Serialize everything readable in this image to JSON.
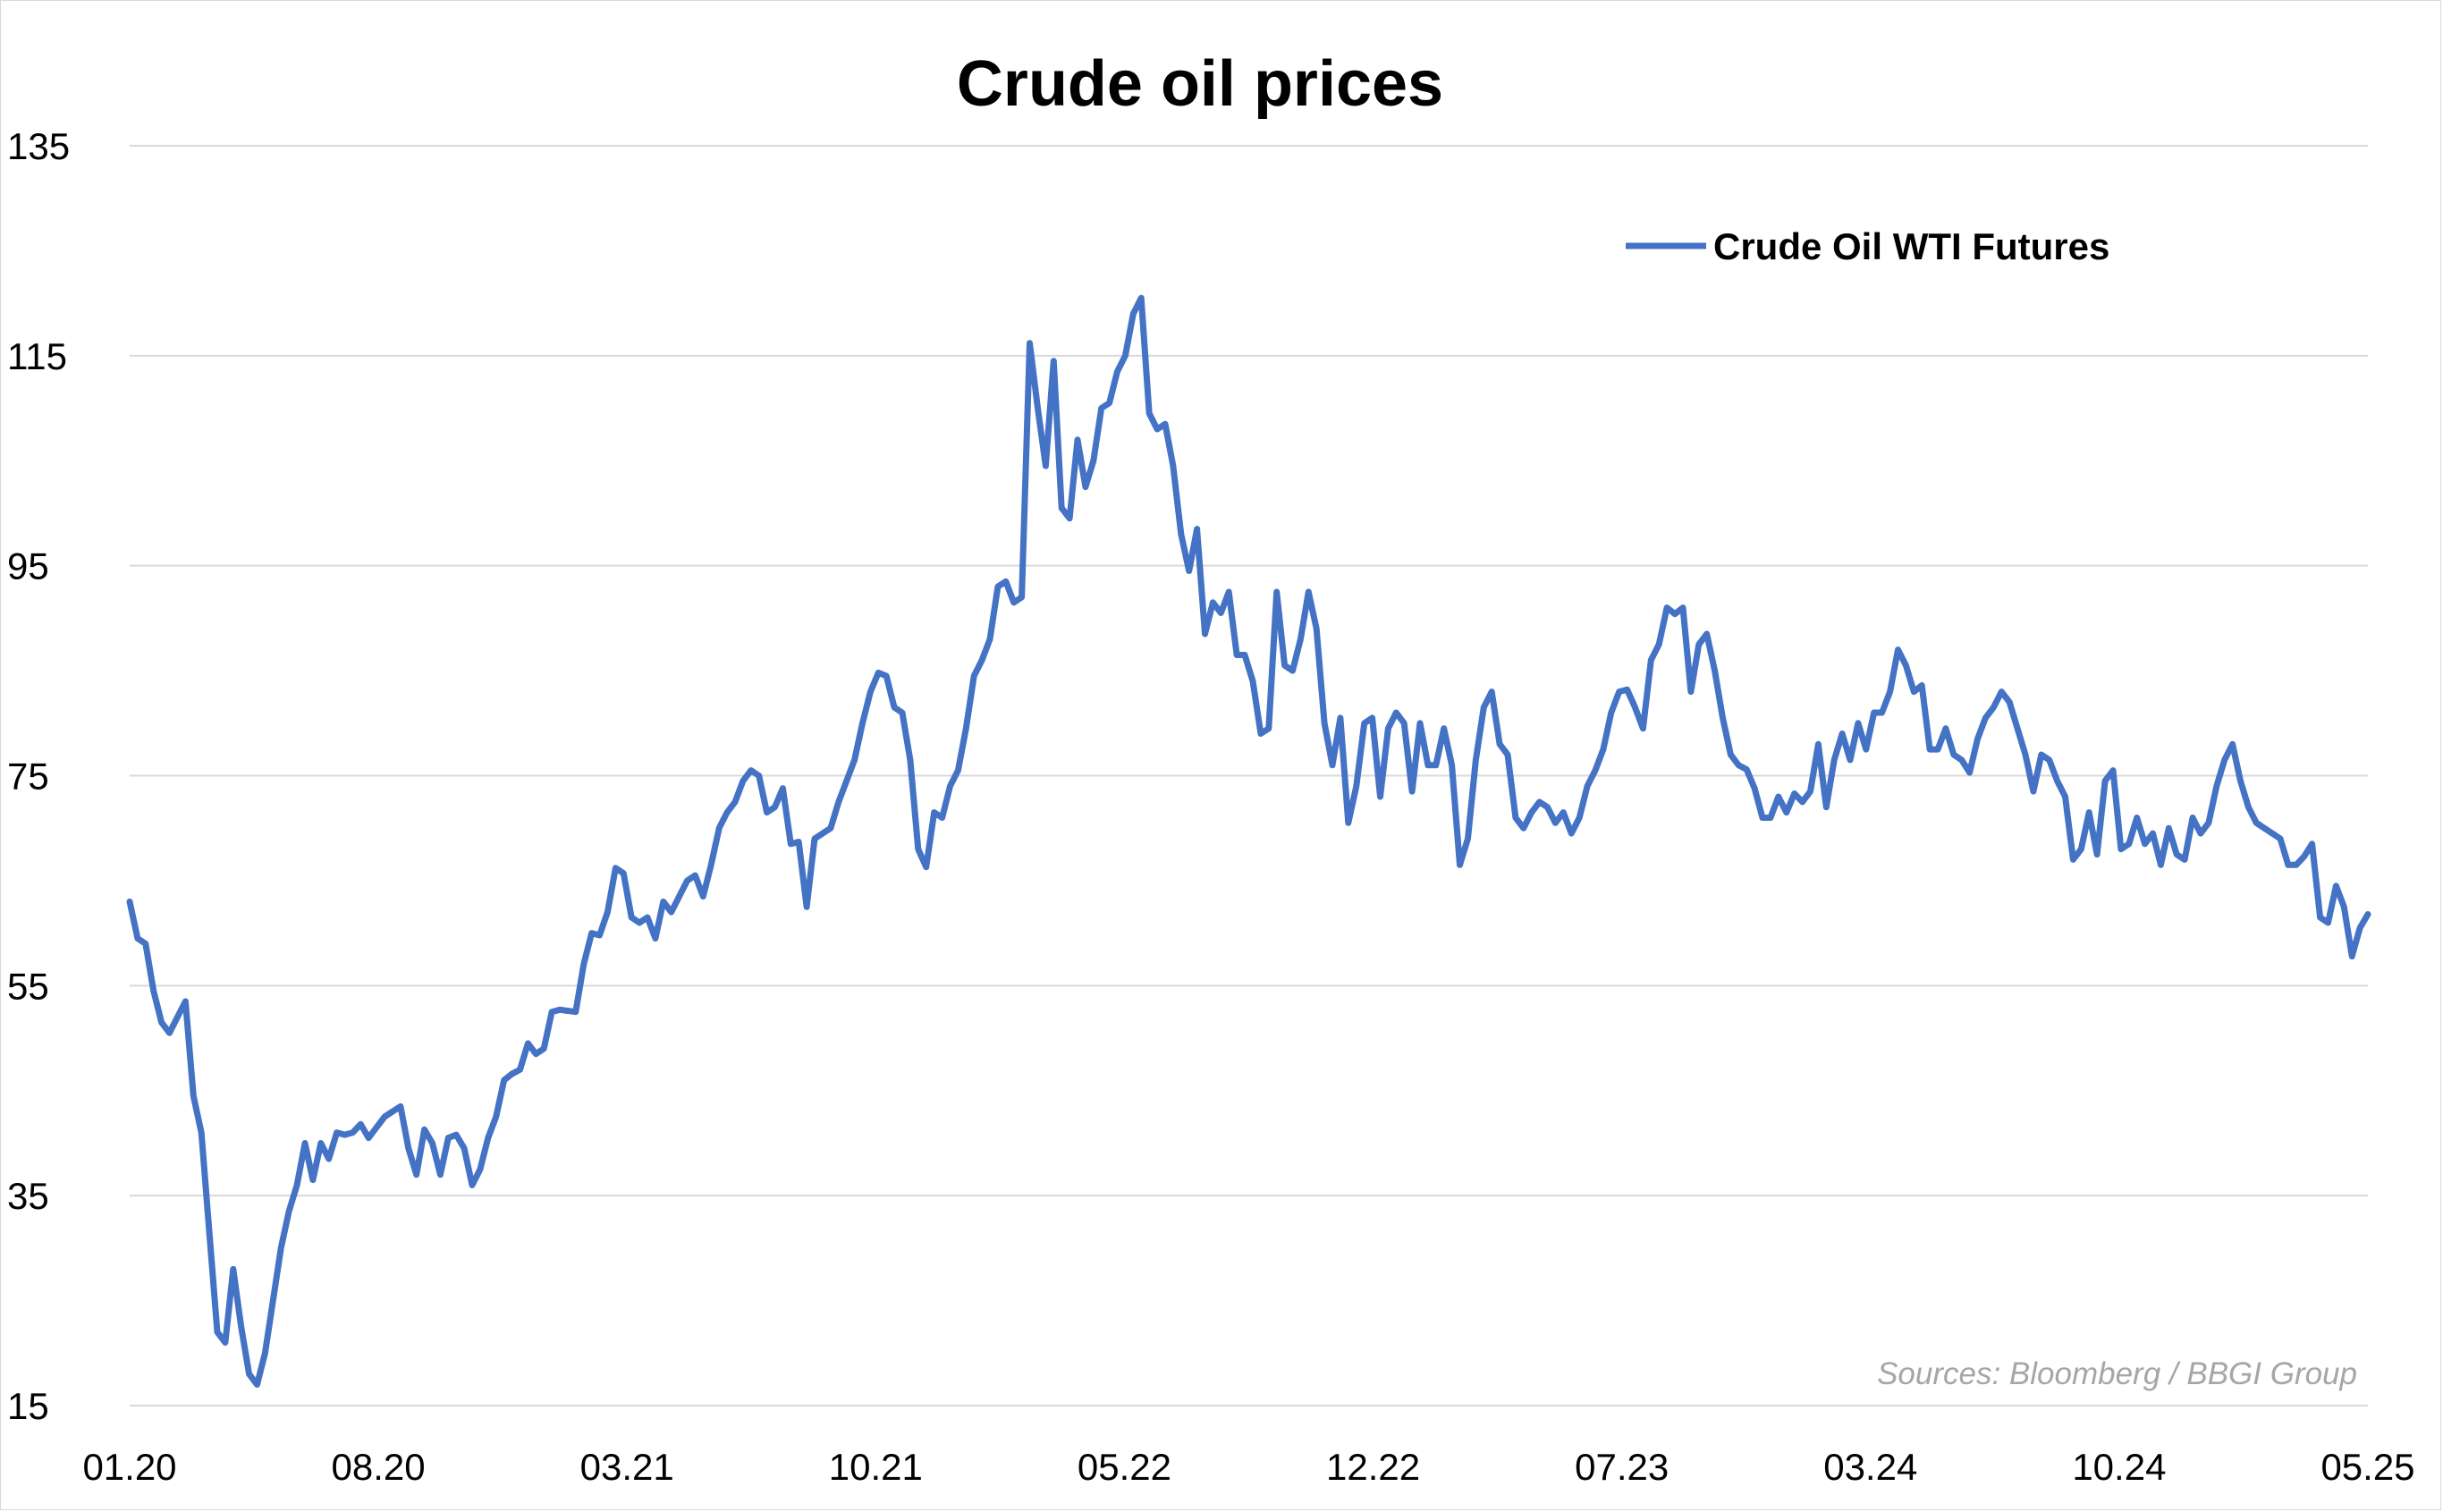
{
  "chart_data": {
    "type": "line",
    "title": "Crude oil prices",
    "source_note": "Sources: Bloomberg / BBGI Group",
    "x_tick_labels": [
      "01.20",
      "08.20",
      "03.21",
      "10.21",
      "05.22",
      "12.22",
      "07.23",
      "03.24",
      "10.24",
      "05.25"
    ],
    "y_ticks": [
      15,
      35,
      55,
      75,
      95,
      115,
      135
    ],
    "ylim": [
      15,
      135
    ],
    "grid": "horizontal",
    "legend_position": "top-right",
    "color": "#4472c4",
    "series": [
      {
        "name": "Crude Oil WTI Futures",
        "values": [
          63,
          59.5,
          59,
          54.5,
          51.5,
          50.5,
          52,
          53.5,
          44.5,
          41,
          31.5,
          22,
          21,
          28,
          22.5,
          18,
          17,
          20,
          25,
          30,
          33.5,
          36,
          40,
          36.5,
          40,
          38.5,
          41,
          40.8,
          41,
          41.8,
          40.5,
          41.5,
          42.5,
          43,
          43.5,
          39.5,
          37,
          41.3,
          40,
          37,
          40.5,
          40.8,
          39.5,
          36,
          37.5,
          40.5,
          42.5,
          46,
          46.6,
          47,
          49.5,
          48.5,
          49,
          52.5,
          52.7,
          52.6,
          52.5,
          57,
          60,
          59.8,
          62,
          66.2,
          65.7,
          61.5,
          61,
          61.5,
          59.5,
          63,
          62,
          63.5,
          65,
          65.5,
          63.5,
          66.5,
          70,
          71.5,
          72.5,
          74.5,
          75.5,
          75,
          71.5,
          72,
          73.8,
          68.5,
          68.7,
          62.5,
          69,
          69.5,
          70,
          72.5,
          74.5,
          76.5,
          80,
          83,
          84.8,
          84.5,
          81.5,
          81,
          76.5,
          68,
          66.3,
          71.5,
          71,
          74,
          75.5,
          79.5,
          84.5,
          86,
          88,
          93,
          93.5,
          91.5,
          92,
          116.2,
          110,
          104.5,
          114.5,
          100.5,
          99.5,
          107,
          102.5,
          105,
          110,
          110.5,
          113.5,
          115,
          119,
          120.5,
          109.5,
          108,
          108.5,
          104.5,
          98,
          94.5,
          98.5,
          88.5,
          91.5,
          90.5,
          92.5,
          86.5,
          86.5,
          84,
          79,
          79.5,
          92.5,
          85.5,
          85,
          88,
          92.5,
          89,
          80,
          76,
          80.5,
          70.5,
          74,
          80,
          80.5,
          73,
          79.5,
          81,
          80,
          73.5,
          80,
          76,
          76,
          79.5,
          76,
          66.5,
          69,
          76.5,
          81.5,
          83,
          78,
          77,
          71,
          70,
          71.5,
          72.5,
          72,
          70.5,
          71.5,
          69.5,
          71,
          74,
          75.5,
          77.5,
          81,
          83,
          83.2,
          81.5,
          79.5,
          86,
          87.5,
          91,
          90.4,
          91,
          83,
          87.5,
          88.5,
          85,
          80.5,
          77,
          76,
          75.6,
          73.8,
          71,
          71,
          73,
          71.5,
          73.3,
          72.5,
          73.5,
          78,
          72,
          76.5,
          79,
          76.5,
          80,
          77.5,
          81,
          81,
          83,
          87,
          85.5,
          83,
          83.6,
          77.5,
          77.5,
          79.5,
          77,
          76.5,
          75.3,
          78.5,
          80.5,
          81.5,
          83,
          82,
          79.5,
          77,
          73.5,
          77,
          76.5,
          74.5,
          73,
          67,
          68,
          71.5,
          67.5,
          74.5,
          75.5,
          68,
          68.5,
          71,
          68.5,
          69.5,
          66.5,
          70,
          67.5,
          67,
          71,
          69.5,
          70.5,
          74,
          76.5,
          78,
          74.5,
          72,
          70.5,
          70,
          69.5,
          69,
          66.5,
          66.5,
          67.3,
          68.5,
          61.5,
          61,
          64.5,
          62.5,
          57.8,
          60.5,
          61.8
        ]
      }
    ]
  }
}
